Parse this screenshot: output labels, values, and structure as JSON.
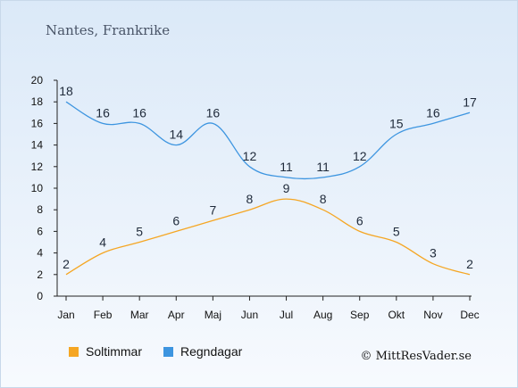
{
  "chart_data": {
    "type": "line",
    "title": "Nantes, Frankrike",
    "categories": [
      "Jan",
      "Feb",
      "Mar",
      "Apr",
      "Maj",
      "Jun",
      "Jul",
      "Aug",
      "Sep",
      "Okt",
      "Nov",
      "Dec"
    ],
    "yticks": [
      "0",
      "2",
      "4",
      "6",
      "8",
      "10",
      "12",
      "14",
      "16",
      "18",
      "20"
    ],
    "ylim": [
      0,
      20
    ],
    "grid": false,
    "legend_position": "bottom-left",
    "series": [
      {
        "name": "Soltimmar",
        "color": "#f5a623",
        "values": [
          2,
          4,
          5,
          6,
          7,
          8,
          9,
          8,
          6,
          5,
          3,
          2
        ]
      },
      {
        "name": "Regndagar",
        "color": "#3d95e0",
        "values": [
          18,
          16,
          16,
          14,
          16,
          12,
          11,
          11,
          12,
          15,
          16,
          17
        ]
      }
    ],
    "credit": "© MittResVader.se"
  }
}
